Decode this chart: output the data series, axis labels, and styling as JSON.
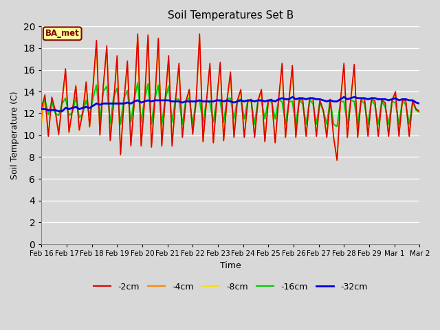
{
  "title": "Soil Temperatures Set B",
  "xlabel": "Time",
  "ylabel": "Soil Temperature (C)",
  "ylim": [
    0,
    20
  ],
  "yticks": [
    0,
    2,
    4,
    6,
    8,
    10,
    12,
    14,
    16,
    18,
    20
  ],
  "legend_label": "BA_met",
  "series_colors": {
    "-2cm": "#dd0000",
    "-4cm": "#ff8800",
    "-8cm": "#ffdd00",
    "-16cm": "#00cc00",
    "-32cm": "#0000dd"
  },
  "x_labels": [
    "Feb 16",
    "Feb 17",
    "Feb 18",
    "Feb 19",
    "Feb 20",
    "Feb 21",
    "Feb 22",
    "Feb 23",
    "Feb 24",
    "Feb 25",
    "Feb 26",
    "Feb 27",
    "Feb 28",
    "Feb 29",
    "Mar 1",
    "Mar 2"
  ],
  "data_2cm": [
    12.4,
    13.7,
    9.9,
    13.5,
    12.3,
    10.1,
    13.2,
    16.1,
    10.3,
    12.3,
    14.5,
    10.5,
    12.1,
    14.9,
    10.8,
    14.5,
    18.7,
    10.0,
    14.6,
    18.2,
    9.5,
    13.0,
    17.3,
    8.2,
    13.2,
    16.8,
    9.0,
    13.1,
    19.3,
    9.0,
    13.2,
    19.2,
    8.9,
    13.3,
    18.9,
    9.0,
    13.3,
    17.3,
    9.0,
    13.2,
    16.6,
    9.8,
    13.1,
    14.2,
    10.1,
    13.2,
    19.3,
    9.4,
    13.1,
    16.6,
    9.3,
    13.2,
    16.7,
    9.5,
    13.3,
    15.8,
    9.8,
    13.2,
    14.2,
    9.8,
    13.1,
    13.3,
    9.8,
    13.2,
    14.2,
    9.4,
    13.2,
    13.3,
    9.3,
    13.3,
    16.6,
    9.8,
    13.2,
    16.4,
    9.8,
    13.3,
    13.3,
    9.9,
    13.3,
    13.4,
    9.9,
    13.2,
    12.3,
    9.8,
    13.3,
    9.8,
    7.7,
    13.2,
    16.6,
    9.8,
    13.3,
    16.5,
    9.8,
    13.3,
    13.4,
    9.9,
    13.3,
    13.2,
    9.9,
    13.2,
    13.0,
    9.9,
    13.2,
    14.0,
    9.9,
    13.2,
    13.2,
    9.9,
    13.2,
    12.4,
    12.2
  ],
  "data_4cm": [
    11.4,
    13.5,
    9.9,
    13.4,
    12.2,
    10.0,
    13.1,
    15.9,
    10.2,
    12.2,
    14.6,
    10.4,
    12.0,
    14.6,
    10.7,
    14.4,
    18.5,
    10.1,
    14.5,
    18.0,
    9.6,
    13.0,
    17.1,
    8.3,
    13.1,
    16.5,
    9.1,
    13.0,
    19.1,
    9.1,
    13.1,
    19.0,
    9.0,
    13.2,
    18.7,
    9.1,
    13.2,
    17.1,
    9.1,
    13.1,
    16.4,
    9.8,
    13.0,
    14.0,
    10.1,
    13.1,
    19.1,
    9.4,
    13.0,
    16.4,
    9.3,
    13.1,
    16.5,
    9.5,
    13.2,
    15.7,
    9.8,
    13.1,
    14.0,
    9.8,
    13.0,
    13.2,
    9.8,
    13.1,
    14.0,
    9.4,
    13.1,
    13.2,
    9.3,
    13.2,
    16.4,
    9.8,
    13.1,
    16.3,
    9.8,
    13.2,
    13.2,
    9.9,
    13.2,
    13.2,
    9.9,
    13.1,
    12.2,
    9.8,
    13.2,
    9.8,
    7.7,
    13.1,
    16.4,
    9.8,
    13.2,
    16.3,
    9.8,
    13.2,
    13.3,
    9.9,
    13.2,
    13.1,
    9.9,
    13.1,
    12.9,
    9.9,
    13.1,
    13.9,
    9.9,
    13.1,
    13.1,
    9.9,
    13.1,
    12.3,
    12.1
  ],
  "data_8cm": [
    11.0,
    13.2,
    10.2,
    13.2,
    12.1,
    10.2,
    13.0,
    15.5,
    10.4,
    12.1,
    14.5,
    10.6,
    11.9,
    14.3,
    10.8,
    14.3,
    17.9,
    10.2,
    14.4,
    17.7,
    9.7,
    12.9,
    16.8,
    8.4,
    13.0,
    16.3,
    9.2,
    12.9,
    18.8,
    9.2,
    13.0,
    18.6,
    9.1,
    13.1,
    18.4,
    9.2,
    13.1,
    16.8,
    9.2,
    13.0,
    16.0,
    9.9,
    12.9,
    13.8,
    10.2,
    13.0,
    18.8,
    9.5,
    12.9,
    16.1,
    9.4,
    13.0,
    16.2,
    9.6,
    13.1,
    15.5,
    9.9,
    13.0,
    13.8,
    9.9,
    12.9,
    13.1,
    9.9,
    13.0,
    13.8,
    9.5,
    13.0,
    13.1,
    9.4,
    13.1,
    16.1,
    9.9,
    13.0,
    16.0,
    9.9,
    13.1,
    13.2,
    10.0,
    13.1,
    13.1,
    10.0,
    13.0,
    12.1,
    9.9,
    13.1,
    9.9,
    7.9,
    13.0,
    16.1,
    9.9,
    13.1,
    16.0,
    9.9,
    13.1,
    13.2,
    10.0,
    13.1,
    13.1,
    10.0,
    13.0,
    12.9,
    10.0,
    13.0,
    13.8,
    10.0,
    13.0,
    13.1,
    10.0,
    13.0,
    12.3,
    12.1
  ],
  "data_16cm": [
    12.8,
    13.3,
    11.9,
    13.1,
    12.0,
    11.8,
    12.9,
    13.4,
    11.8,
    12.1,
    13.5,
    11.6,
    12.0,
    13.2,
    11.8,
    13.4,
    14.6,
    11.5,
    14.0,
    14.5,
    11.1,
    13.5,
    14.3,
    11.0,
    13.4,
    14.1,
    11.2,
    13.3,
    14.8,
    11.2,
    13.3,
    14.7,
    11.0,
    13.4,
    14.6,
    11.0,
    13.3,
    14.5,
    11.2,
    13.3,
    13.3,
    11.0,
    13.2,
    13.4,
    11.0,
    13.2,
    13.2,
    11.2,
    13.1,
    13.0,
    11.2,
    13.2,
    13.1,
    11.2,
    13.3,
    13.4,
    11.5,
    13.2,
    13.3,
    11.5,
    13.1,
    13.2,
    11.0,
    13.2,
    13.1,
    11.5,
    13.2,
    13.0,
    11.5,
    13.2,
    13.1,
    11.0,
    13.1,
    13.1,
    11.0,
    13.2,
    12.9,
    11.0,
    13.2,
    12.9,
    11.0,
    13.1,
    12.2,
    11.0,
    13.2,
    11.0,
    10.8,
    13.1,
    13.1,
    11.0,
    13.2,
    13.1,
    11.0,
    13.2,
    12.9,
    11.0,
    13.2,
    12.8,
    11.0,
    13.1,
    12.6,
    11.0,
    13.1,
    13.0,
    11.0,
    13.1,
    12.8,
    11.0,
    13.1,
    12.3,
    12.1
  ],
  "data_32cm": [
    12.4,
    12.4,
    12.3,
    12.3,
    12.3,
    12.2,
    12.2,
    12.5,
    12.4,
    12.5,
    12.6,
    12.4,
    12.5,
    12.6,
    12.5,
    12.7,
    12.9,
    12.8,
    12.9,
    12.9,
    12.9,
    12.9,
    12.9,
    12.9,
    12.9,
    13.0,
    12.9,
    13.1,
    13.2,
    13.0,
    13.1,
    13.2,
    13.1,
    13.2,
    13.2,
    13.2,
    13.2,
    13.2,
    13.1,
    13.1,
    13.1,
    13.0,
    13.1,
    13.1,
    13.1,
    13.1,
    13.2,
    13.1,
    13.1,
    13.1,
    13.1,
    13.2,
    13.2,
    13.1,
    13.2,
    13.1,
    13.0,
    13.1,
    13.2,
    13.1,
    13.2,
    13.2,
    13.1,
    13.2,
    13.2,
    13.1,
    13.2,
    13.2,
    13.1,
    13.3,
    13.4,
    13.3,
    13.3,
    13.5,
    13.3,
    13.4,
    13.4,
    13.3,
    13.4,
    13.4,
    13.3,
    13.3,
    13.2,
    13.1,
    13.2,
    13.1,
    13.1,
    13.3,
    13.5,
    13.3,
    13.4,
    13.5,
    13.4,
    13.4,
    13.4,
    13.3,
    13.4,
    13.4,
    13.3,
    13.3,
    13.3,
    13.2,
    13.3,
    13.4,
    13.2,
    13.3,
    13.3,
    13.2,
    13.2,
    13.0,
    12.9
  ]
}
